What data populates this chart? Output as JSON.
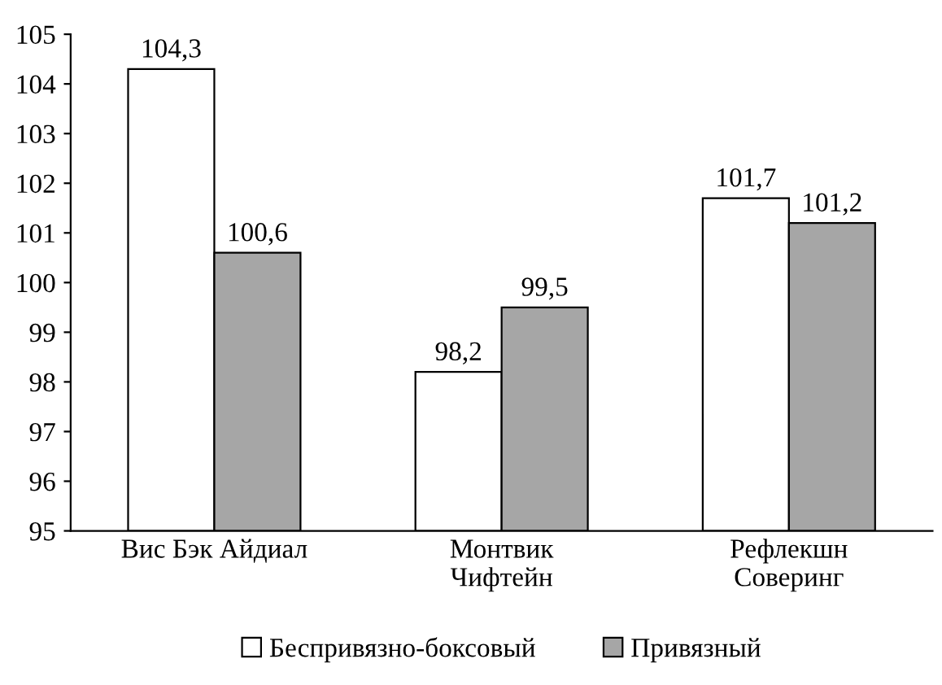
{
  "chart_data": {
    "type": "bar",
    "categories": [
      "Вис Бэк Айдиал",
      "Монтвик\nЧифтейн",
      "Рефлекшн\nСоверинг"
    ],
    "series": [
      {
        "name": "Беспривязно-боксовый",
        "color": "#ffffff",
        "values": [
          104.3,
          98.2,
          101.7
        ],
        "value_labels": [
          "104,3",
          "98,2",
          "101,7"
        ]
      },
      {
        "name": "Привязный",
        "color": "#a6a6a6",
        "values": [
          100.6,
          99.5,
          101.2
        ],
        "value_labels": [
          "100,6",
          "99,5",
          "101,2"
        ]
      }
    ],
    "ylim": [
      95,
      105
    ],
    "yticks": [
      95,
      96,
      97,
      98,
      99,
      100,
      101,
      102,
      103,
      104,
      105
    ],
    "grid": false,
    "legend": "bottom"
  }
}
